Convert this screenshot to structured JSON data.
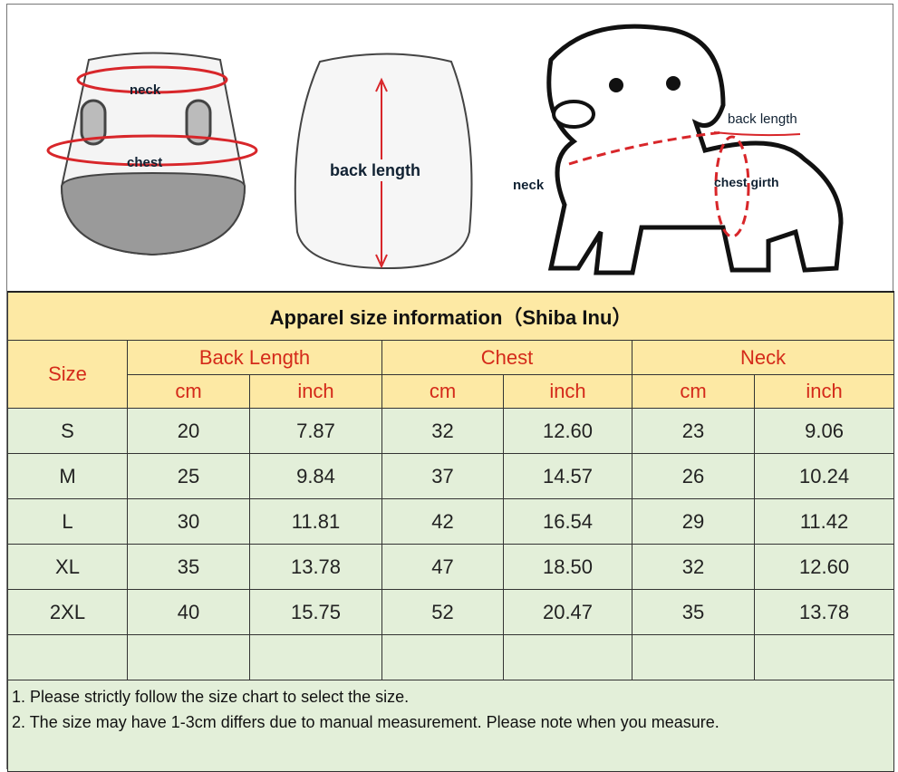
{
  "illustrations": {
    "front": {
      "neck_label": "neck",
      "chest_label": "chest"
    },
    "back": {
      "back_length_label": "back length"
    },
    "dog": {
      "back_length_label": "back length",
      "neck_label": "neck",
      "chest_girth_label": "chest girth"
    }
  },
  "table": {
    "title": "Apparel  size  information（Shiba Inu）",
    "size_header": "Size",
    "groups": [
      "Back Length",
      "Chest",
      "Neck"
    ],
    "units": [
      "cm",
      "inch",
      "cm",
      "inch",
      "cm",
      "inch"
    ],
    "rows": [
      [
        "S",
        "20",
        "7.87",
        "32",
        "12.60",
        "23",
        "9.06"
      ],
      [
        "M",
        "25",
        "9.84",
        "37",
        "14.57",
        "26",
        "10.24"
      ],
      [
        "L",
        "30",
        "11.81",
        "42",
        "16.54",
        "29",
        "11.42"
      ],
      [
        "XL",
        "35",
        "13.78",
        "47",
        "18.50",
        "32",
        "12.60"
      ],
      [
        "2XL",
        "40",
        "15.75",
        "52",
        "20.47",
        "35",
        "13.78"
      ]
    ],
    "notes": [
      "1. Please strictly follow the size chart  to select the size.",
      "2. The size may have 1-3cm differs due to manual measurement. Please note when you measure."
    ]
  },
  "colors": {
    "header_bg": "#fde9a4",
    "header_text": "#d42a1a",
    "body_bg": "#e3efd9",
    "arrow": "#d8262a"
  }
}
